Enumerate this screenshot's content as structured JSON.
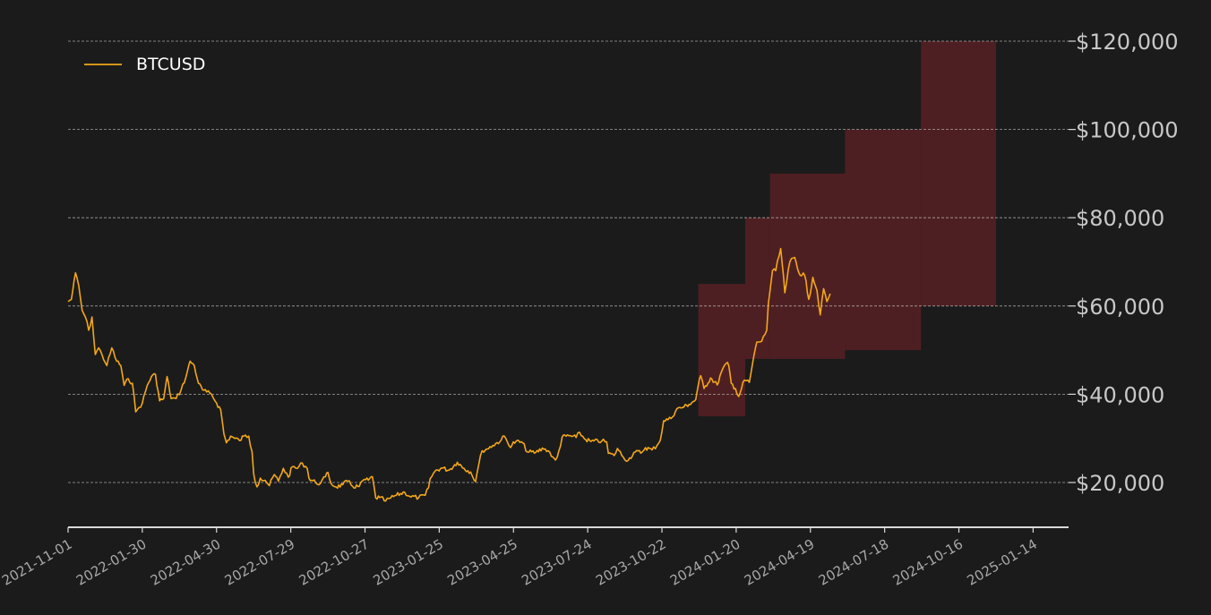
{
  "colors": {
    "background": "#1b1b1b",
    "line": "#f2a71b",
    "band": "#4e1f22",
    "grid": "#d0d0d0",
    "axis": "#d9d9d9"
  },
  "chart_data": {
    "type": "line",
    "legend": {
      "label": "BTCUSD",
      "placement": "top-left"
    },
    "x_tick_labels": [
      "2021-11-01",
      "2022-01-30",
      "2022-04-30",
      "2022-07-29",
      "2022-10-27",
      "2023-01-25",
      "2023-04-25",
      "2023-07-24",
      "2023-10-22",
      "2024-01-20",
      "2024-04-19",
      "2024-07-18",
      "2024-10-16",
      "2025-01-14"
    ],
    "y_tick_labels": [
      "$20,000",
      "$40,000",
      "$60,000",
      "$80,000",
      "$100,000",
      "$120,000"
    ],
    "y_ticks": [
      20000,
      40000,
      60000,
      80000,
      100000,
      120000
    ],
    "xlim": [
      "2021-11-01",
      "2025-02-26"
    ],
    "ylim": [
      10000,
      120000
    ],
    "y_axis_side": "right",
    "grid": "horizontal dashed",
    "series": [
      {
        "name": "BTCUSD",
        "points": [
          [
            "2021-11-01",
            61000
          ],
          [
            "2021-11-05",
            61500
          ],
          [
            "2021-11-10",
            67500
          ],
          [
            "2021-11-14",
            64500
          ],
          [
            "2021-11-18",
            59000
          ],
          [
            "2021-11-22",
            57500
          ],
          [
            "2021-11-26",
            54500
          ],
          [
            "2021-11-30",
            57500
          ],
          [
            "2021-12-04",
            49000
          ],
          [
            "2021-12-08",
            50500
          ],
          [
            "2021-12-12",
            49000
          ],
          [
            "2021-12-18",
            46500
          ],
          [
            "2021-12-24",
            50500
          ],
          [
            "2021-12-30",
            47500
          ],
          [
            "2022-01-04",
            46500
          ],
          [
            "2022-01-08",
            42000
          ],
          [
            "2022-01-13",
            43500
          ],
          [
            "2022-01-18",
            42500
          ],
          [
            "2022-01-22",
            36000
          ],
          [
            "2022-01-26",
            37000
          ],
          [
            "2022-01-30",
            38000
          ],
          [
            "2022-02-05",
            42000
          ],
          [
            "2022-02-10",
            44000
          ],
          [
            "2022-02-15",
            44500
          ],
          [
            "2022-02-20",
            38500
          ],
          [
            "2022-02-25",
            39000
          ],
          [
            "2022-03-01",
            44000
          ],
          [
            "2022-03-06",
            39000
          ],
          [
            "2022-03-12",
            39000
          ],
          [
            "2022-03-18",
            41000
          ],
          [
            "2022-03-24",
            44000
          ],
          [
            "2022-03-29",
            47500
          ],
          [
            "2022-04-03",
            46500
          ],
          [
            "2022-04-08",
            42500
          ],
          [
            "2022-04-13",
            41000
          ],
          [
            "2022-04-18",
            40500
          ],
          [
            "2022-04-24",
            40000
          ],
          [
            "2022-04-30",
            38000
          ],
          [
            "2022-05-05",
            36500
          ],
          [
            "2022-05-09",
            31000
          ],
          [
            "2022-05-12",
            29000
          ],
          [
            "2022-05-17",
            30500
          ],
          [
            "2022-05-22",
            30000
          ],
          [
            "2022-05-28",
            29500
          ],
          [
            "2022-06-02",
            30500
          ],
          [
            "2022-06-08",
            30500
          ],
          [
            "2022-06-12",
            27000
          ],
          [
            "2022-06-14",
            22000
          ],
          [
            "2022-06-18",
            19000
          ],
          [
            "2022-06-22",
            21000
          ],
          [
            "2022-06-28",
            20500
          ],
          [
            "2022-07-03",
            19300
          ],
          [
            "2022-07-09",
            21800
          ],
          [
            "2022-07-14",
            20300
          ],
          [
            "2022-07-20",
            23200
          ],
          [
            "2022-07-26",
            21200
          ],
          [
            "2022-07-31",
            23600
          ],
          [
            "2022-08-06",
            23200
          ],
          [
            "2022-08-12",
            24400
          ],
          [
            "2022-08-18",
            23200
          ],
          [
            "2022-08-20",
            21000
          ],
          [
            "2022-08-28",
            20000
          ],
          [
            "2022-09-03",
            19800
          ],
          [
            "2022-09-09",
            21300
          ],
          [
            "2022-09-12",
            22300
          ],
          [
            "2022-09-16",
            19700
          ],
          [
            "2022-09-22",
            19000
          ],
          [
            "2022-09-30",
            19500
          ],
          [
            "2022-10-06",
            20300
          ],
          [
            "2022-10-12",
            19100
          ],
          [
            "2022-10-20",
            19100
          ],
          [
            "2022-10-26",
            20700
          ],
          [
            "2022-10-31",
            20500
          ],
          [
            "2022-11-05",
            21300
          ],
          [
            "2022-11-09",
            16500
          ],
          [
            "2022-11-14",
            16600
          ],
          [
            "2022-11-21",
            15800
          ],
          [
            "2022-11-27",
            16500
          ],
          [
            "2022-12-04",
            17100
          ],
          [
            "2022-12-14",
            17800
          ],
          [
            "2022-12-20",
            16900
          ],
          [
            "2022-12-31",
            16550
          ],
          [
            "2023-01-08",
            17100
          ],
          [
            "2023-01-12",
            18800
          ],
          [
            "2023-01-14",
            20900
          ],
          [
            "2023-01-20",
            22600
          ],
          [
            "2023-01-28",
            23300
          ],
          [
            "2023-02-06",
            22800
          ],
          [
            "2023-02-16",
            24600
          ],
          [
            "2023-02-24",
            23200
          ],
          [
            "2023-03-04",
            22400
          ],
          [
            "2023-03-10",
            20200
          ],
          [
            "2023-03-14",
            24200
          ],
          [
            "2023-03-18",
            27200
          ],
          [
            "2023-03-24",
            27600
          ],
          [
            "2023-03-31",
            28400
          ],
          [
            "2023-04-10",
            29600
          ],
          [
            "2023-04-14",
            30500
          ],
          [
            "2023-04-20",
            28200
          ],
          [
            "2023-04-28",
            29300
          ],
          [
            "2023-05-06",
            29000
          ],
          [
            "2023-05-12",
            26900
          ],
          [
            "2023-05-22",
            26800
          ],
          [
            "2023-05-30",
            27800
          ],
          [
            "2023-06-06",
            27200
          ],
          [
            "2023-06-10",
            25900
          ],
          [
            "2023-06-15",
            25100
          ],
          [
            "2023-06-21",
            28300
          ],
          [
            "2023-06-23",
            30300
          ],
          [
            "2023-07-01",
            30600
          ],
          [
            "2023-07-10",
            30200
          ],
          [
            "2023-07-14",
            31400
          ],
          [
            "2023-07-20",
            29900
          ],
          [
            "2023-07-28",
            29300
          ],
          [
            "2023-08-10",
            29400
          ],
          [
            "2023-08-16",
            29200
          ],
          [
            "2023-08-18",
            26600
          ],
          [
            "2023-08-25",
            26100
          ],
          [
            "2023-08-29",
            27700
          ],
          [
            "2023-09-05",
            25800
          ],
          [
            "2023-09-11",
            25000
          ],
          [
            "2023-09-18",
            26800
          ],
          [
            "2023-09-28",
            26900
          ],
          [
            "2023-10-02",
            27900
          ],
          [
            "2023-10-10",
            27400
          ],
          [
            "2023-10-16",
            28400
          ],
          [
            "2023-10-20",
            29600
          ],
          [
            "2023-10-24",
            34000
          ],
          [
            "2023-11-02",
            34500
          ],
          [
            "2023-11-09",
            36700
          ],
          [
            "2023-11-16",
            37000
          ],
          [
            "2023-11-24",
            37700
          ],
          [
            "2023-12-02",
            38800
          ],
          [
            "2023-12-05",
            42000
          ],
          [
            "2023-12-08",
            44200
          ],
          [
            "2023-12-12",
            41300
          ],
          [
            "2023-12-20",
            43700
          ],
          [
            "2023-12-28",
            42100
          ],
          [
            "2024-01-02",
            45000
          ],
          [
            "2024-01-08",
            47000
          ],
          [
            "2024-01-11",
            46500
          ],
          [
            "2024-01-14",
            42500
          ],
          [
            "2024-01-19",
            41300
          ],
          [
            "2024-01-23",
            39500
          ],
          [
            "2024-01-30",
            43200
          ],
          [
            "2024-02-05",
            42700
          ],
          [
            "2024-02-09",
            47100
          ],
          [
            "2024-02-14",
            51800
          ],
          [
            "2024-02-20",
            52000
          ],
          [
            "2024-02-26",
            54500
          ],
          [
            "2024-02-28",
            60500
          ],
          [
            "2024-03-04",
            68000
          ],
          [
            "2024-03-08",
            68000
          ],
          [
            "2024-03-14",
            73000
          ],
          [
            "2024-03-19",
            63000
          ],
          [
            "2024-03-25",
            70000
          ],
          [
            "2024-03-31",
            71000
          ],
          [
            "2024-04-05",
            67500
          ],
          [
            "2024-04-12",
            67000
          ],
          [
            "2024-04-17",
            61500
          ],
          [
            "2024-04-22",
            66500
          ],
          [
            "2024-04-27",
            63500
          ],
          [
            "2024-05-01",
            58000
          ],
          [
            "2024-05-05",
            63900
          ],
          [
            "2024-05-09",
            61000
          ],
          [
            "2024-05-13",
            62800
          ]
        ]
      }
    ],
    "shaded_regions": [
      {
        "x_range": [
          "2023-12-05",
          "2024-01-31"
        ],
        "y_range": [
          35000,
          65000
        ]
      },
      {
        "x_range": [
          "2024-01-31",
          "2024-03-01"
        ],
        "y_range": [
          48000,
          80000
        ]
      },
      {
        "x_range": [
          "2024-03-01",
          "2024-05-31"
        ],
        "y_range": [
          48000,
          90000
        ]
      },
      {
        "x_range": [
          "2024-05-31",
          "2024-08-31"
        ],
        "y_range": [
          50000,
          100000
        ]
      },
      {
        "x_range": [
          "2024-08-31",
          "2024-11-30"
        ],
        "y_range": [
          60000,
          120000
        ]
      }
    ]
  }
}
